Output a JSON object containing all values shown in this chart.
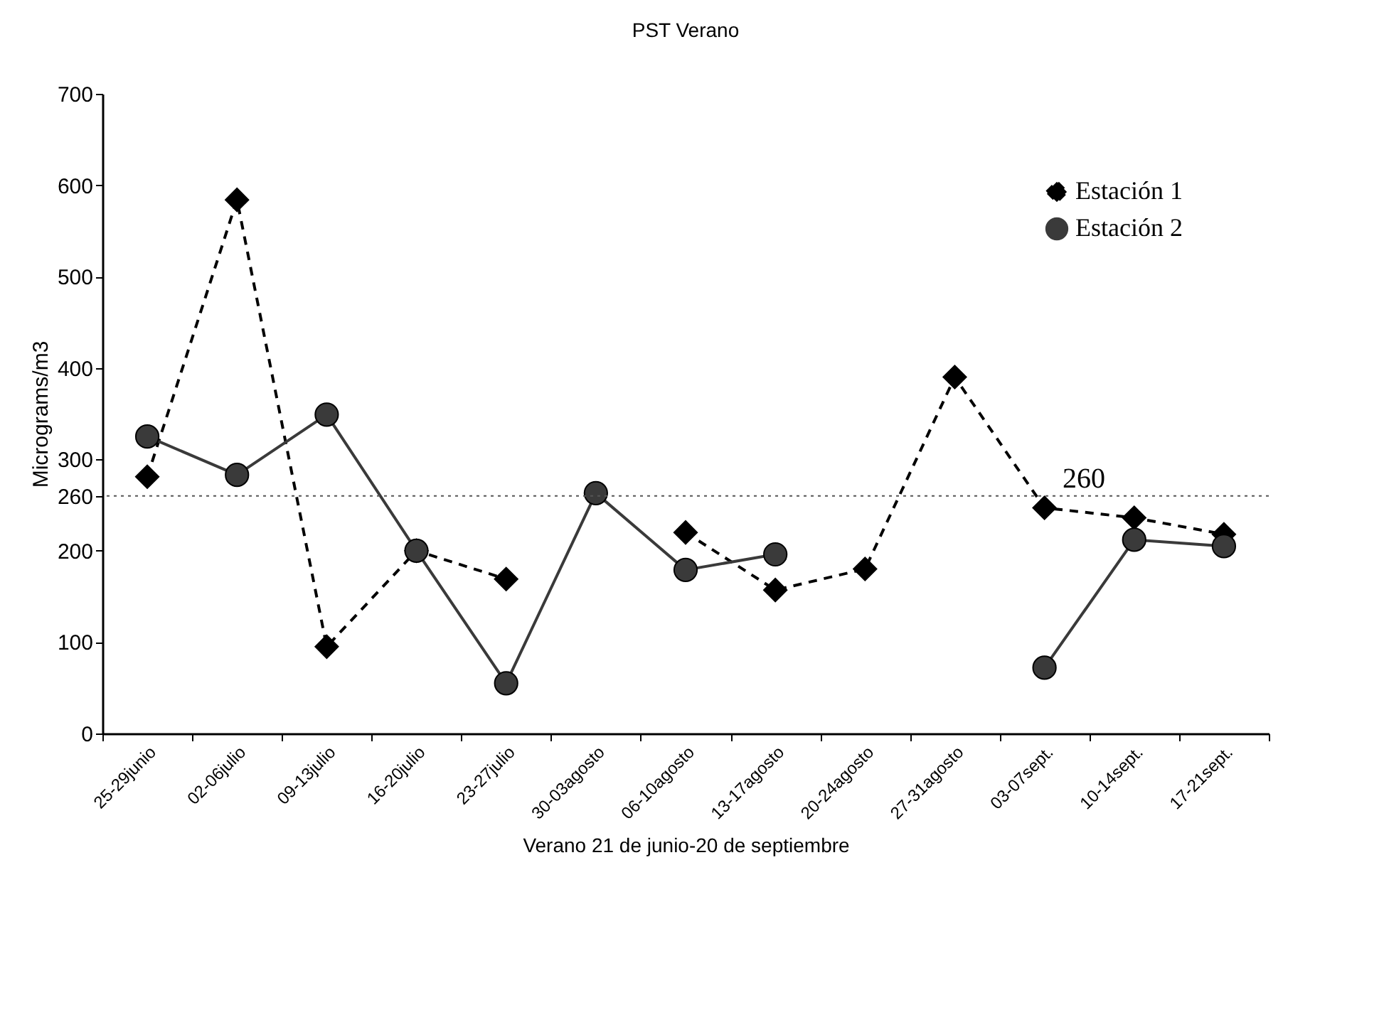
{
  "chart_data": {
    "type": "line",
    "title": "PST Verano",
    "xlabel": "Verano 21 de junio-20 de septiembre",
    "ylabel": "Micrograms/m3",
    "categories": [
      "25-29junio",
      "02-06julio",
      "09-13julio",
      "16-20julio",
      "23-27julio",
      "30-03agosto",
      "06-10agosto",
      "13-17agosto",
      "20-24agosto",
      "27-31agosto",
      "03-07sept.",
      "10-14sept.",
      "17-21sept."
    ],
    "series": [
      {
        "name": "Estación 1",
        "color": "#000000",
        "marker": "diamond",
        "line_style": "dashed",
        "values": [
          281,
          584,
          95,
          200,
          169,
          null,
          220,
          157,
          180,
          390,
          247,
          236,
          218
        ]
      },
      {
        "name": "Estación 2",
        "color": "#3a3a3a",
        "marker": "circle",
        "line_style": "solid",
        "values": [
          325,
          283,
          349,
          200,
          55,
          263,
          179,
          196,
          null,
          null,
          72,
          212,
          205
        ]
      }
    ],
    "ylim": [
      0,
      700
    ],
    "yticks": [
      0,
      100,
      200,
      260,
      300,
      400,
      500,
      600,
      700
    ],
    "ref_lines": [
      {
        "axis": "y",
        "value": 260,
        "label": "260",
        "color": "#555555",
        "line_style": "dotted"
      }
    ],
    "legend": "top right",
    "grid": false
  }
}
